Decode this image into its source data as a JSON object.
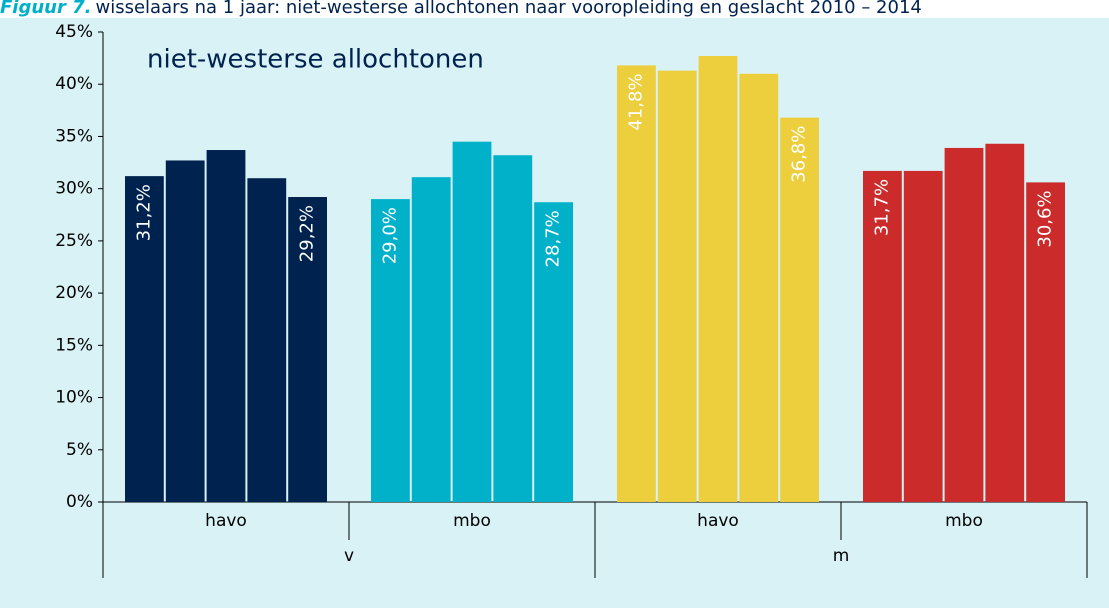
{
  "chart_data": {
    "type": "bar",
    "figure_label": "Figuur 7.",
    "title": "wisselaars na 1 jaar: niet-westerse allochtonen naar vooropleiding en geslacht 2010 – 2014",
    "subtitle": "niet-westerse allochtonen",
    "ylim": [
      0,
      45
    ],
    "yticks": [
      {
        "value": 0,
        "label": "0%"
      },
      {
        "value": 5,
        "label": "5%"
      },
      {
        "value": 10,
        "label": "10%"
      },
      {
        "value": 15,
        "label": "15%"
      },
      {
        "value": 20,
        "label": "20%"
      },
      {
        "value": 25,
        "label": "25%"
      },
      {
        "value": 30,
        "label": "30%"
      },
      {
        "value": 35,
        "label": "35%"
      },
      {
        "value": 40,
        "label": "40%"
      },
      {
        "value": 45,
        "label": "45%"
      }
    ],
    "groups": [
      {
        "name": "v",
        "series": [
          {
            "name": "havo",
            "color": "#00224e",
            "values": [
              31.2,
              32.7,
              33.7,
              31.0,
              29.2
            ],
            "value_labels": [
              "31,2%",
              null,
              null,
              null,
              "29,2%"
            ]
          },
          {
            "name": "mbo",
            "color": "#00b1c9",
            "values": [
              29.0,
              31.1,
              34.5,
              33.2,
              28.7
            ],
            "value_labels": [
              "29,0%",
              null,
              null,
              null,
              "28,7%"
            ]
          }
        ]
      },
      {
        "name": "m",
        "series": [
          {
            "name": "havo",
            "color": "#edcf3e",
            "values": [
              41.8,
              41.3,
              42.7,
              41.0,
              36.8
            ],
            "value_labels": [
              "41,8%",
              null,
              null,
              null,
              "36,8%"
            ]
          },
          {
            "name": "mbo",
            "color": "#cc2b2b",
            "values": [
              31.7,
              31.7,
              33.9,
              34.3,
              30.6
            ],
            "value_labels": [
              "31,7%",
              null,
              null,
              null,
              "30,6%"
            ]
          }
        ]
      }
    ]
  }
}
